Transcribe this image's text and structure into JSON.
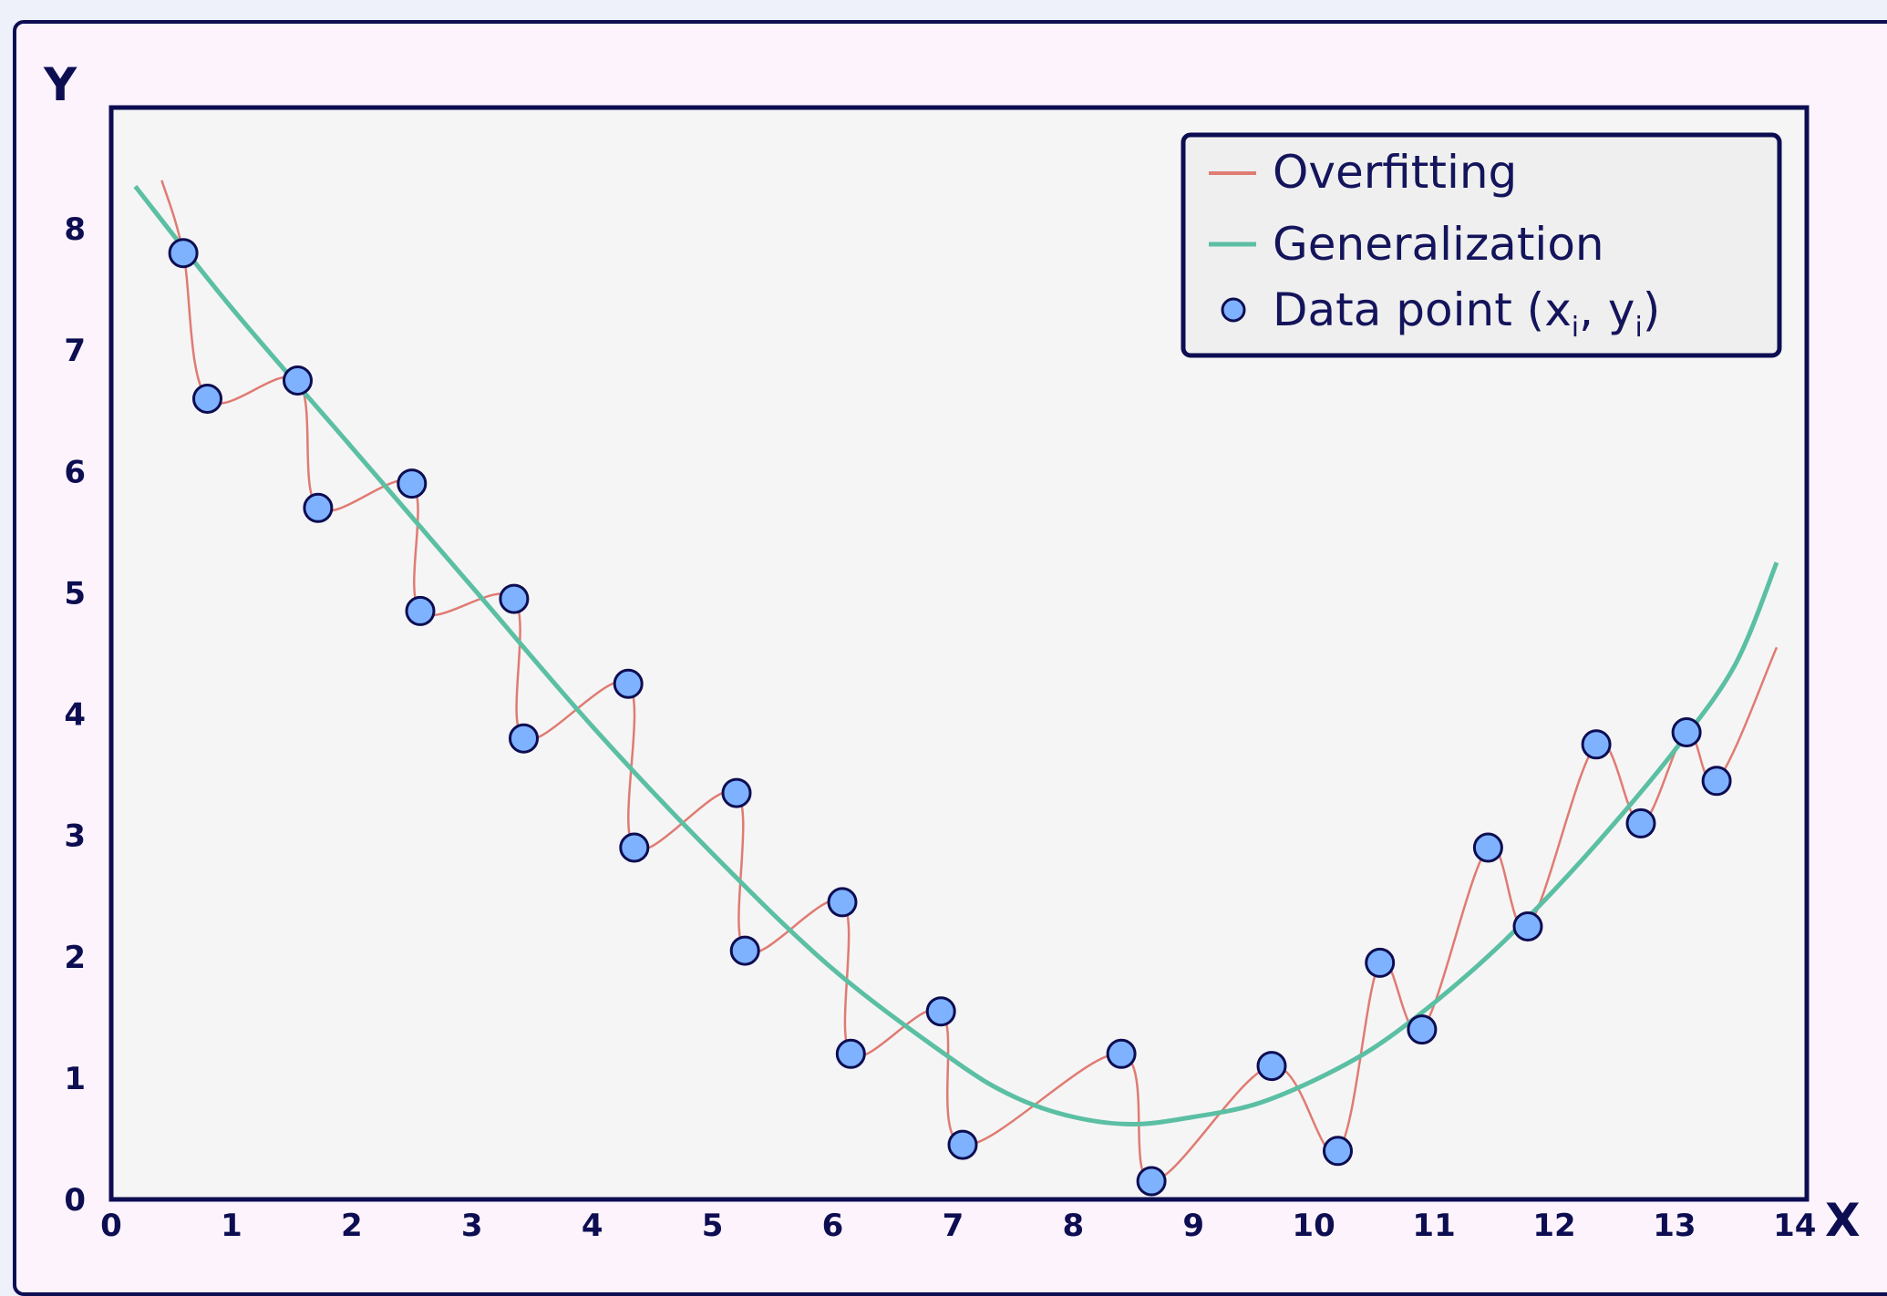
{
  "chart_data": {
    "type": "scatter",
    "xlabel": "X",
    "ylabel": "Y",
    "xlim": [
      0,
      14.1
    ],
    "ylim": [
      0,
      9.0
    ],
    "x_ticks": [
      "0",
      "1",
      "2",
      "3",
      "4",
      "5",
      "6",
      "7",
      "8",
      "9",
      "10",
      "11",
      "12",
      "13",
      "14"
    ],
    "y_ticks": [
      "0",
      "1",
      "2",
      "3",
      "4",
      "5",
      "6",
      "7",
      "8"
    ],
    "legend_position": "top-right",
    "grid": false,
    "colors": {
      "overfitting": "#e07b72",
      "generalization": "#5bbfa3",
      "points_fill": "#7eb2ff",
      "points_stroke": "#0d0d52",
      "plot_bg": "#f5f5f6",
      "frame": "#0d0d52"
    },
    "legend": {
      "overfitting": "Overfitting",
      "generalization": "Generalization",
      "points_prefix": "Data point (x",
      "points_sub1": "i",
      "points_mid": ", y",
      "points_sub2": "i",
      "points_suffix": ")"
    },
    "points": [
      {
        "x": 0.6,
        "y": 7.8
      },
      {
        "x": 0.8,
        "y": 6.6
      },
      {
        "x": 1.55,
        "y": 6.75
      },
      {
        "x": 1.72,
        "y": 5.7
      },
      {
        "x": 2.5,
        "y": 5.9
      },
      {
        "x": 2.57,
        "y": 4.85
      },
      {
        "x": 3.35,
        "y": 4.95
      },
      {
        "x": 3.43,
        "y": 3.8
      },
      {
        "x": 4.3,
        "y": 4.25
      },
      {
        "x": 4.35,
        "y": 2.9
      },
      {
        "x": 5.2,
        "y": 3.35
      },
      {
        "x": 5.27,
        "y": 2.05
      },
      {
        "x": 6.08,
        "y": 2.45
      },
      {
        "x": 6.15,
        "y": 1.2
      },
      {
        "x": 6.9,
        "y": 1.55
      },
      {
        "x": 7.08,
        "y": 0.45
      },
      {
        "x": 8.4,
        "y": 1.2
      },
      {
        "x": 8.65,
        "y": 0.15
      },
      {
        "x": 9.65,
        "y": 1.1
      },
      {
        "x": 10.2,
        "y": 0.4
      },
      {
        "x": 10.55,
        "y": 1.95
      },
      {
        "x": 10.9,
        "y": 1.4
      },
      {
        "x": 11.45,
        "y": 2.9
      },
      {
        "x": 11.78,
        "y": 2.25
      },
      {
        "x": 12.35,
        "y": 3.75
      },
      {
        "x": 12.72,
        "y": 3.1
      },
      {
        "x": 13.1,
        "y": 3.85
      },
      {
        "x": 13.35,
        "y": 3.45
      }
    ],
    "generalization_curve": [
      {
        "x": 0.2,
        "y": 8.35
      },
      {
        "x": 1.0,
        "y": 7.35
      },
      {
        "x": 2.0,
        "y": 6.2
      },
      {
        "x": 3.0,
        "y": 5.05
      },
      {
        "x": 4.0,
        "y": 3.9
      },
      {
        "x": 5.0,
        "y": 2.85
      },
      {
        "x": 6.0,
        "y": 1.9
      },
      {
        "x": 7.0,
        "y": 1.15
      },
      {
        "x": 7.5,
        "y": 0.85
      },
      {
        "x": 8.0,
        "y": 0.68
      },
      {
        "x": 8.5,
        "y": 0.62
      },
      {
        "x": 9.0,
        "y": 0.68
      },
      {
        "x": 9.5,
        "y": 0.78
      },
      {
        "x": 10.0,
        "y": 0.98
      },
      {
        "x": 10.5,
        "y": 1.25
      },
      {
        "x": 11.0,
        "y": 1.62
      },
      {
        "x": 11.5,
        "y": 2.05
      },
      {
        "x": 12.0,
        "y": 2.55
      },
      {
        "x": 12.5,
        "y": 3.1
      },
      {
        "x": 13.0,
        "y": 3.7
      },
      {
        "x": 13.5,
        "y": 4.4
      },
      {
        "x": 13.85,
        "y": 5.25
      }
    ],
    "overfitting_curve_ends": {
      "start": {
        "x": 0.42,
        "y": 8.4
      },
      "end": {
        "x": 13.85,
        "y": 4.55
      }
    }
  }
}
